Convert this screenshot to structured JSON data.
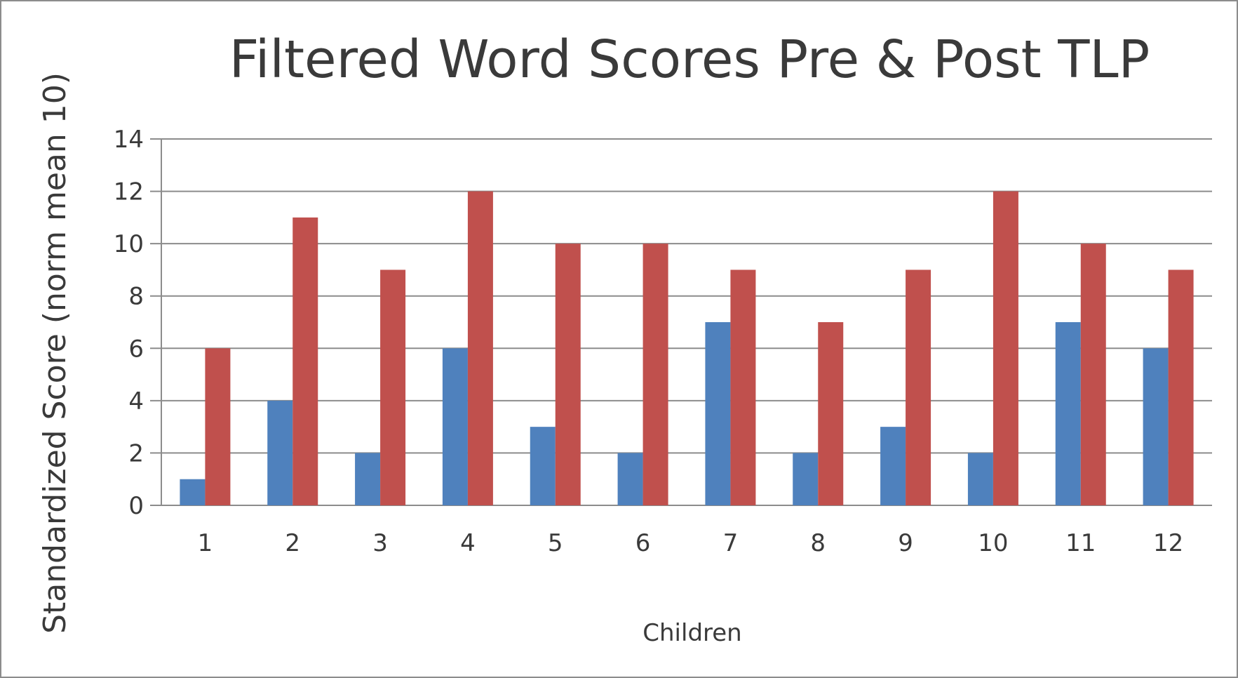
{
  "chart_data": {
    "type": "bar",
    "title": "Filtered Word Scores Pre & Post TLP",
    "xlabel": "Children",
    "ylabel": "Standardized Score (norm mean 10)",
    "categories": [
      "1",
      "2",
      "3",
      "4",
      "5",
      "6",
      "7",
      "8",
      "9",
      "10",
      "11",
      "12"
    ],
    "series": [
      {
        "values": [
          1,
          4,
          2,
          6,
          3,
          2,
          7,
          2,
          3,
          2,
          7,
          6
        ],
        "color": "#4f81bd"
      },
      {
        "values": [
          6,
          11,
          9,
          12,
          10,
          10,
          9,
          7,
          9,
          12,
          10,
          9
        ],
        "color": "#c0504d"
      }
    ],
    "ylim": [
      0,
      14
    ],
    "yticks": [
      "0",
      "2",
      "4",
      "6",
      "8",
      "10",
      "12",
      "14"
    ],
    "grid": true,
    "legend": "none"
  }
}
